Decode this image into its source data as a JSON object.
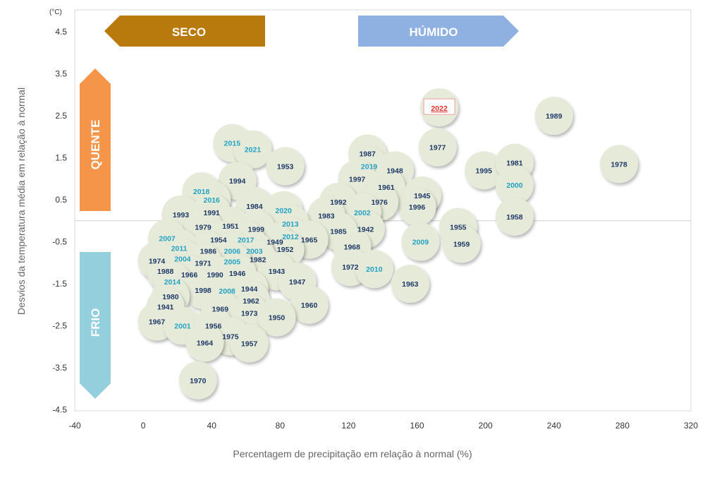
{
  "chart_data": {
    "type": "scatter",
    "xlabel": "Percentagem de precipitação em relação à normal (%)",
    "ylabel": "Desvios da temperatura média em relação à normal",
    "y_unit": "(°C)",
    "xlim": [
      -40,
      320
    ],
    "ylim": [
      -4.5,
      5.0
    ],
    "x_ticks": [
      -40,
      0,
      40,
      80,
      120,
      160,
      200,
      240,
      280,
      320
    ],
    "y_ticks": [
      4.5,
      3.5,
      2.5,
      1.5,
      0.5,
      -0.5,
      -1.5,
      -2.5,
      -3.5,
      -4.5
    ],
    "grid": false,
    "reference_line_y": 0,
    "highlight_year": "2022",
    "colors": {
      "bubble": "#e6ead8",
      "label_dark": "#1f3a68",
      "label_light": "#23a3c4",
      "highlight": "#e03030",
      "seco": "#b87a0c",
      "humido": "#8fb1e2",
      "quente": "#f5954a",
      "frio": "#94cfdd"
    },
    "quadrant_labels": {
      "dry": "SECO",
      "wet": "HÚMIDO",
      "hot": "QUENTE",
      "cold": "FRIO"
    },
    "points": [
      {
        "year": "2022",
        "x": 173,
        "y": 2.7,
        "style": "highlight"
      },
      {
        "year": "1989",
        "x": 240,
        "y": 2.5,
        "style": "dark"
      },
      {
        "year": "1978",
        "x": 278,
        "y": 1.35,
        "style": "dark"
      },
      {
        "year": "1977",
        "x": 172,
        "y": 1.75,
        "style": "dark"
      },
      {
        "year": "1995",
        "x": 199,
        "y": 1.2,
        "style": "dark"
      },
      {
        "year": "1981",
        "x": 217,
        "y": 1.38,
        "style": "dark"
      },
      {
        "year": "2000",
        "x": 217,
        "y": 0.85,
        "style": "light"
      },
      {
        "year": "1958",
        "x": 217,
        "y": 0.1,
        "style": "dark"
      },
      {
        "year": "2015",
        "x": 52,
        "y": 1.85,
        "style": "light"
      },
      {
        "year": "2021",
        "x": 64,
        "y": 1.7,
        "style": "light"
      },
      {
        "year": "1953",
        "x": 83,
        "y": 1.3,
        "style": "dark"
      },
      {
        "year": "1987",
        "x": 131,
        "y": 1.6,
        "style": "dark"
      },
      {
        "year": "2019",
        "x": 132,
        "y": 1.3,
        "style": "light"
      },
      {
        "year": "1948",
        "x": 147,
        "y": 1.2,
        "style": "dark"
      },
      {
        "year": "1997",
        "x": 125,
        "y": 1.0,
        "style": "dark"
      },
      {
        "year": "1961",
        "x": 142,
        "y": 0.8,
        "style": "dark"
      },
      {
        "year": "1945",
        "x": 163,
        "y": 0.6,
        "style": "dark"
      },
      {
        "year": "1996",
        "x": 160,
        "y": 0.33,
        "style": "dark"
      },
      {
        "year": "1976",
        "x": 138,
        "y": 0.45,
        "style": "dark"
      },
      {
        "year": "1992",
        "x": 114,
        "y": 0.45,
        "style": "dark"
      },
      {
        "year": "2002",
        "x": 128,
        "y": 0.2,
        "style": "light"
      },
      {
        "year": "1983",
        "x": 107,
        "y": 0.12,
        "style": "dark"
      },
      {
        "year": "1942",
        "x": 130,
        "y": -0.2,
        "style": "dark"
      },
      {
        "year": "1985",
        "x": 114,
        "y": -0.25,
        "style": "dark"
      },
      {
        "year": "1968",
        "x": 122,
        "y": -0.62,
        "style": "dark"
      },
      {
        "year": "1972",
        "x": 121,
        "y": -1.1,
        "style": "dark"
      },
      {
        "year": "2010",
        "x": 135,
        "y": -1.15,
        "style": "light"
      },
      {
        "year": "1963",
        "x": 156,
        "y": -1.5,
        "style": "dark"
      },
      {
        "year": "2009",
        "x": 162,
        "y": -0.5,
        "style": "light"
      },
      {
        "year": "1955",
        "x": 184,
        "y": -0.15,
        "style": "dark"
      },
      {
        "year": "1959",
        "x": 186,
        "y": -0.55,
        "style": "dark"
      },
      {
        "year": "1994",
        "x": 55,
        "y": 0.95,
        "style": "dark"
      },
      {
        "year": "2018",
        "x": 34,
        "y": 0.7,
        "style": "light"
      },
      {
        "year": "2016",
        "x": 40,
        "y": 0.5,
        "style": "light"
      },
      {
        "year": "1984",
        "x": 65,
        "y": 0.35,
        "style": "dark"
      },
      {
        "year": "2020",
        "x": 82,
        "y": 0.25,
        "style": "light"
      },
      {
        "year": "2013",
        "x": 86,
        "y": -0.07,
        "style": "light"
      },
      {
        "year": "1993",
        "x": 22,
        "y": 0.15,
        "style": "dark"
      },
      {
        "year": "1991",
        "x": 40,
        "y": 0.2,
        "style": "dark"
      },
      {
        "year": "1951",
        "x": 51,
        "y": -0.12,
        "style": "dark"
      },
      {
        "year": "1979",
        "x": 35,
        "y": -0.15,
        "style": "dark"
      },
      {
        "year": "1999",
        "x": 66,
        "y": -0.2,
        "style": "dark"
      },
      {
        "year": "2012",
        "x": 86,
        "y": -0.37,
        "style": "light"
      },
      {
        "year": "1965",
        "x": 97,
        "y": -0.45,
        "style": "dark"
      },
      {
        "year": "1949",
        "x": 77,
        "y": -0.5,
        "style": "dark"
      },
      {
        "year": "1952",
        "x": 83,
        "y": -0.68,
        "style": "dark"
      },
      {
        "year": "2007",
        "x": 14,
        "y": -0.42,
        "style": "light"
      },
      {
        "year": "1954",
        "x": 44,
        "y": -0.45,
        "style": "dark"
      },
      {
        "year": "2017",
        "x": 60,
        "y": -0.45,
        "style": "light"
      },
      {
        "year": "2011",
        "x": 21,
        "y": -0.65,
        "style": "light"
      },
      {
        "year": "1986",
        "x": 38,
        "y": -0.72,
        "style": "dark"
      },
      {
        "year": "2006",
        "x": 52,
        "y": -0.72,
        "style": "light"
      },
      {
        "year": "2003",
        "x": 65,
        "y": -0.72,
        "style": "light"
      },
      {
        "year": "1982",
        "x": 67,
        "y": -0.92,
        "style": "dark"
      },
      {
        "year": "2005",
        "x": 52,
        "y": -0.97,
        "style": "light"
      },
      {
        "year": "1974",
        "x": 8,
        "y": -0.95,
        "style": "dark"
      },
      {
        "year": "2004",
        "x": 23,
        "y": -0.9,
        "style": "light"
      },
      {
        "year": "1971",
        "x": 35,
        "y": -1.0,
        "style": "dark"
      },
      {
        "year": "1988",
        "x": 13,
        "y": -1.2,
        "style": "dark"
      },
      {
        "year": "1966",
        "x": 27,
        "y": -1.28,
        "style": "dark"
      },
      {
        "year": "1990",
        "x": 42,
        "y": -1.28,
        "style": "dark"
      },
      {
        "year": "1946",
        "x": 55,
        "y": -1.25,
        "style": "dark"
      },
      {
        "year": "1943",
        "x": 78,
        "y": -1.2,
        "style": "dark"
      },
      {
        "year": "1947",
        "x": 90,
        "y": -1.45,
        "style": "dark"
      },
      {
        "year": "2014",
        "x": 17,
        "y": -1.45,
        "style": "light"
      },
      {
        "year": "1998",
        "x": 35,
        "y": -1.65,
        "style": "dark"
      },
      {
        "year": "2008",
        "x": 49,
        "y": -1.67,
        "style": "light"
      },
      {
        "year": "1944",
        "x": 62,
        "y": -1.62,
        "style": "dark"
      },
      {
        "year": "1980",
        "x": 16,
        "y": -1.8,
        "style": "dark"
      },
      {
        "year": "1962",
        "x": 63,
        "y": -1.9,
        "style": "dark"
      },
      {
        "year": "1960",
        "x": 97,
        "y": -2.0,
        "style": "dark"
      },
      {
        "year": "1941",
        "x": 13,
        "y": -2.05,
        "style": "dark"
      },
      {
        "year": "1969",
        "x": 45,
        "y": -2.1,
        "style": "dark"
      },
      {
        "year": "1973",
        "x": 62,
        "y": -2.2,
        "style": "dark"
      },
      {
        "year": "1950",
        "x": 78,
        "y": -2.3,
        "style": "dark"
      },
      {
        "year": "1967",
        "x": 8,
        "y": -2.4,
        "style": "dark"
      },
      {
        "year": "2001",
        "x": 23,
        "y": -2.5,
        "style": "light"
      },
      {
        "year": "1956",
        "x": 41,
        "y": -2.5,
        "style": "dark"
      },
      {
        "year": "1975",
        "x": 51,
        "y": -2.75,
        "style": "dark"
      },
      {
        "year": "1964",
        "x": 36,
        "y": -2.9,
        "style": "dark"
      },
      {
        "year": "1957",
        "x": 62,
        "y": -2.92,
        "style": "dark"
      },
      {
        "year": "1970",
        "x": 32,
        "y": -3.8,
        "style": "dark"
      }
    ]
  }
}
